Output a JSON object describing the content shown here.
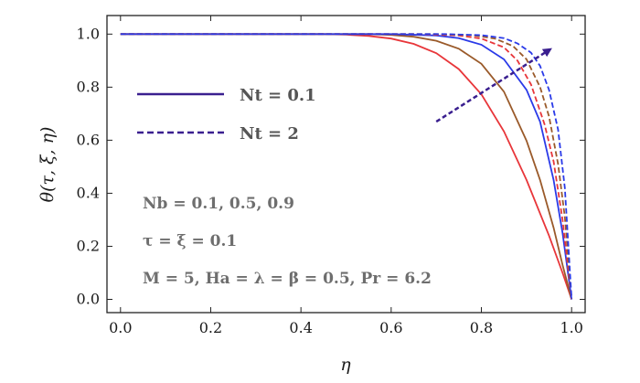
{
  "chart_data": {
    "type": "line",
    "xlabel": "η",
    "ylabel": "θ(τ, ξ, η)",
    "xlim": [
      -0.03,
      1.03
    ],
    "ylim": [
      -0.05,
      1.07
    ],
    "x_ticks": [
      "0.0",
      "0.2",
      "0.4",
      "0.6",
      "0.8",
      "1.0"
    ],
    "y_ticks": [
      "0.0",
      "0.2",
      "0.4",
      "0.6",
      "0.8",
      "1.0"
    ],
    "grid": false,
    "legend_position": "left",
    "legend": [
      {
        "label": "Nt = 0.1",
        "style": "solid",
        "color": "#3a1f8f"
      },
      {
        "label": "Nt = 2",
        "style": "dashed",
        "color": "#3a1f8f"
      }
    ],
    "annotations": [
      "Nb = 0.1, 0.5, 0.9",
      "τ = ξ = 0.1",
      "M = 5, Ha = λ = β = 0.5, Pr = 6.2"
    ],
    "arrow": {
      "from": [
        0.7,
        0.67
      ],
      "to": [
        0.95,
        0.94
      ],
      "color": "#3a1f8f"
    },
    "series": [
      {
        "color": "#e8363a",
        "dash": false,
        "values": [
          [
            0.0,
            1.0
          ],
          [
            0.45,
            1.0
          ],
          [
            0.5,
            0.998
          ],
          [
            0.55,
            0.993
          ],
          [
            0.6,
            0.983
          ],
          [
            0.65,
            0.963
          ],
          [
            0.7,
            0.928
          ],
          [
            0.75,
            0.868
          ],
          [
            0.8,
            0.773
          ],
          [
            0.85,
            0.633
          ],
          [
            0.9,
            0.45
          ],
          [
            0.95,
            0.24
          ],
          [
            0.98,
            0.1
          ],
          [
            1.0,
            0.0
          ]
        ]
      },
      {
        "color": "#9a5a2a",
        "dash": false,
        "values": [
          [
            0.0,
            1.0
          ],
          [
            0.55,
            1.0
          ],
          [
            0.6,
            0.997
          ],
          [
            0.65,
            0.99
          ],
          [
            0.7,
            0.975
          ],
          [
            0.75,
            0.945
          ],
          [
            0.8,
            0.888
          ],
          [
            0.85,
            0.783
          ],
          [
            0.9,
            0.598
          ],
          [
            0.93,
            0.45
          ],
          [
            0.96,
            0.27
          ],
          [
            0.98,
            0.13
          ],
          [
            1.0,
            0.0
          ]
        ]
      },
      {
        "color": "#2a3ae8",
        "dash": false,
        "values": [
          [
            0.0,
            1.0
          ],
          [
            0.6,
            1.0
          ],
          [
            0.7,
            0.995
          ],
          [
            0.75,
            0.985
          ],
          [
            0.8,
            0.96
          ],
          [
            0.85,
            0.905
          ],
          [
            0.9,
            0.79
          ],
          [
            0.93,
            0.67
          ],
          [
            0.96,
            0.45
          ],
          [
            0.98,
            0.25
          ],
          [
            1.0,
            0.0
          ]
        ]
      },
      {
        "color": "#e8363a",
        "dash": true,
        "values": [
          [
            0.0,
            1.0
          ],
          [
            0.65,
            1.0
          ],
          [
            0.75,
            0.995
          ],
          [
            0.8,
            0.983
          ],
          [
            0.85,
            0.95
          ],
          [
            0.88,
            0.9
          ],
          [
            0.91,
            0.81
          ],
          [
            0.94,
            0.66
          ],
          [
            0.96,
            0.52
          ],
          [
            0.98,
            0.3
          ],
          [
            1.0,
            0.0
          ]
        ]
      },
      {
        "color": "#9a5a2a",
        "dash": true,
        "values": [
          [
            0.0,
            1.0
          ],
          [
            0.7,
            1.0
          ],
          [
            0.78,
            0.996
          ],
          [
            0.83,
            0.983
          ],
          [
            0.87,
            0.955
          ],
          [
            0.9,
            0.905
          ],
          [
            0.93,
            0.8
          ],
          [
            0.95,
            0.69
          ],
          [
            0.97,
            0.51
          ],
          [
            0.985,
            0.31
          ],
          [
            1.0,
            0.0
          ]
        ]
      },
      {
        "color": "#2a3ae8",
        "dash": true,
        "values": [
          [
            0.0,
            1.0
          ],
          [
            0.72,
            1.0
          ],
          [
            0.8,
            0.996
          ],
          [
            0.85,
            0.985
          ],
          [
            0.88,
            0.965
          ],
          [
            0.91,
            0.93
          ],
          [
            0.93,
            0.88
          ],
          [
            0.95,
            0.79
          ],
          [
            0.97,
            0.64
          ],
          [
            0.985,
            0.42
          ],
          [
            1.0,
            0.0
          ]
        ]
      }
    ]
  }
}
